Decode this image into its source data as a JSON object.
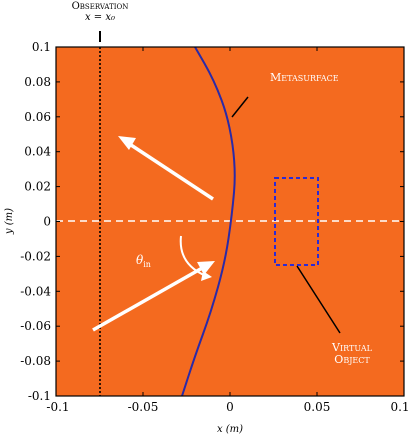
{
  "figure": {
    "observation": {
      "title": "Observation",
      "label": "x = x₀"
    },
    "metasurface_label": "Metasurface",
    "virtual_object_label": [
      "Virtual",
      "Object"
    ],
    "theta_label": "θ",
    "theta_sub": "in",
    "xlabel": "x (m)",
    "ylabel": "y (m)",
    "x_ticks": [
      "-0.1",
      "-0.05",
      "0",
      "0.05",
      "0.1"
    ],
    "y_ticks": [
      "0.1",
      "0.08",
      "0.06",
      "0.04",
      "0.02",
      "0",
      "-0.02",
      "-0.04",
      "-0.06",
      "-0.08",
      "-0.1"
    ],
    "x_range": [
      -0.1,
      0.1
    ],
    "y_range": [
      -0.1,
      0.1
    ],
    "observation_x": -0.075,
    "virtual_object_box": {
      "x": [
        0.025,
        0.05
      ],
      "y": [
        -0.025,
        0.025
      ]
    },
    "colors": {
      "background": "#f46a1f",
      "fringe_bright": "#ffd23c",
      "fringe_dark": "#4a2a15",
      "metasurface": "#2a2aa8",
      "virtual_box": "#2b2bd6",
      "arrow": "#ffffff",
      "text_on_field": "#ffffff"
    }
  }
}
